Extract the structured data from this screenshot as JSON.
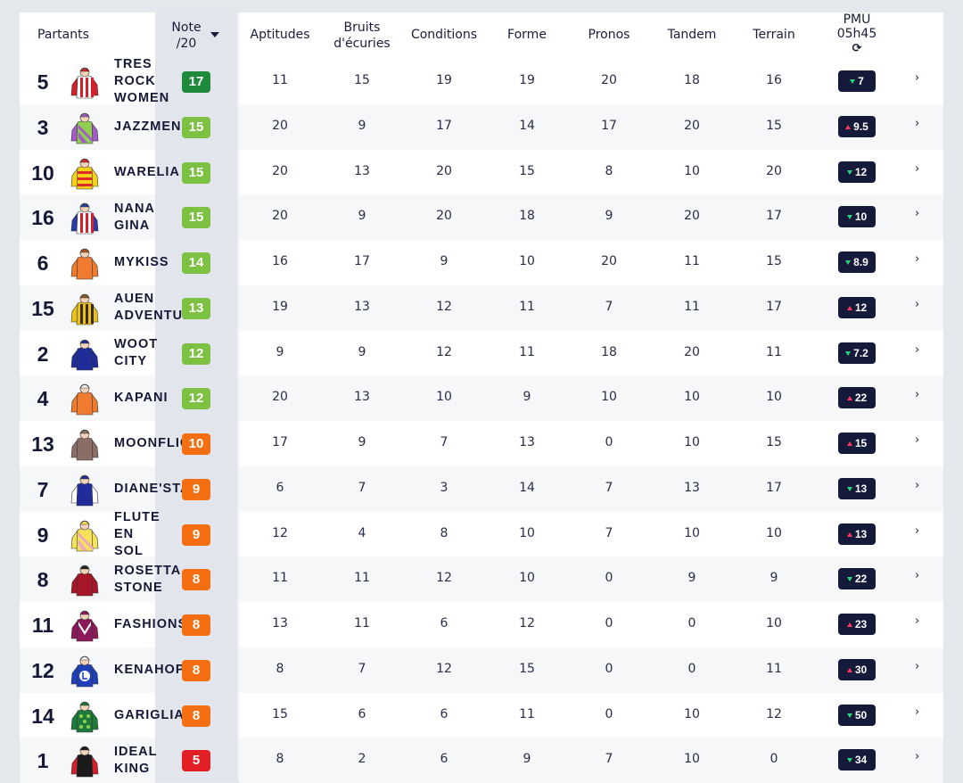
{
  "header": {
    "partants": "Partants",
    "note": "Note\n/20",
    "aptitudes": "Aptitudes",
    "bruits": "Bruits\nd'écuries",
    "conditions": "Conditions",
    "forme": "Forme",
    "pronos": "Pronos",
    "tandem": "Tandem",
    "terrain": "Terrain",
    "pmu": "PMU\n05h45",
    "refresh_icon": "refresh-icon"
  },
  "colors": {
    "note_dark_green": "#1f8a3c",
    "note_green": "#7cc142",
    "note_orange": "#f56f12",
    "note_red": "#e31f26",
    "pmu_bg": "#151a3b",
    "pmu_up": "#ff3860",
    "pmu_down": "#2fd37a"
  },
  "rows": [
    {
      "num": "5",
      "name": "TRES\nROCK\nWOMEN",
      "note": "17",
      "note_color": "#1f8a3c",
      "aptitudes": "11",
      "bruits": "15",
      "conditions": "19",
      "forme": "19",
      "pronos": "20",
      "tandem": "18",
      "terrain": "16",
      "pmu": "7",
      "trend": "down",
      "silk": {
        "body": "#ffffff",
        "stripe": "#d4202a",
        "sleeve": "#d4202a",
        "cap": "#d4202a",
        "pattern": "stripes"
      }
    },
    {
      "num": "3",
      "name": "JAZZMEN",
      "note": "15",
      "note_color": "#7cc142",
      "aptitudes": "20",
      "bruits": "9",
      "conditions": "17",
      "forme": "14",
      "pronos": "17",
      "tandem": "20",
      "terrain": "15",
      "pmu": "9.5",
      "trend": "up",
      "silk": {
        "body": "#8fd14f",
        "stripe": "#a55bc7",
        "sleeve": "#a55bc7",
        "cap": "#a55bc7",
        "pattern": "diagonal"
      }
    },
    {
      "num": "10",
      "name": "WARELIA",
      "note": "15",
      "note_color": "#7cc142",
      "aptitudes": "20",
      "bruits": "13",
      "conditions": "20",
      "forme": "15",
      "pronos": "8",
      "tandem": "10",
      "terrain": "20",
      "pmu": "12",
      "trend": "down",
      "silk": {
        "body": "#f5d215",
        "stripe": "#e02a2a",
        "sleeve": "#f5d215",
        "cap": "#e02a2a",
        "pattern": "hoops"
      }
    },
    {
      "num": "16",
      "name": "NANA\nGINA",
      "note": "15",
      "note_color": "#7cc142",
      "aptitudes": "20",
      "bruits": "9",
      "conditions": "20",
      "forme": "18",
      "pronos": "9",
      "tandem": "20",
      "terrain": "17",
      "pmu": "10",
      "trend": "down",
      "silk": {
        "body": "#ffffff",
        "stripe": "#d4202a",
        "sleeve": "#2b3aa8",
        "cap": "#2b3aa8",
        "pattern": "stripes"
      }
    },
    {
      "num": "6",
      "name": "MYKISS",
      "note": "14",
      "note_color": "#7cc142",
      "aptitudes": "16",
      "bruits": "17",
      "conditions": "9",
      "forme": "10",
      "pronos": "20",
      "tandem": "11",
      "terrain": "15",
      "pmu": "8.9",
      "trend": "down",
      "silk": {
        "body": "#f07a2e",
        "stripe": "#c0541a",
        "sleeve": "#f07a2e",
        "cap": "#c0541a",
        "pattern": "plain"
      }
    },
    {
      "num": "15",
      "name": "AUEN\nADVENTURE",
      "note": "13",
      "note_color": "#7cc142",
      "aptitudes": "19",
      "bruits": "13",
      "conditions": "12",
      "forme": "11",
      "pronos": "7",
      "tandem": "11",
      "terrain": "17",
      "pmu": "12",
      "trend": "up",
      "silk": {
        "body": "#e8c21a",
        "stripe": "#3a2a10",
        "sleeve": "#e8c21a",
        "cap": "#8a5a20",
        "pattern": "stripes"
      }
    },
    {
      "num": "2",
      "name": "WOOT\nCITY",
      "note": "12",
      "note_color": "#7cc142",
      "aptitudes": "9",
      "bruits": "9",
      "conditions": "12",
      "forme": "11",
      "pronos": "18",
      "tandem": "20",
      "terrain": "11",
      "pmu": "7.2",
      "trend": "down",
      "silk": {
        "body": "#1f2c9a",
        "stripe": "#ffffff",
        "sleeve": "#1f2c9a",
        "cap": "#1f2c9a",
        "pattern": "plain"
      }
    },
    {
      "num": "4",
      "name": "KAPANI",
      "note": "12",
      "note_color": "#7cc142",
      "aptitudes": "20",
      "bruits": "13",
      "conditions": "10",
      "forme": "9",
      "pronos": "10",
      "tandem": "10",
      "terrain": "10",
      "pmu": "22",
      "trend": "up",
      "silk": {
        "body": "#f07a2e",
        "stripe": "#ffffff",
        "sleeve": "#f07a2e",
        "cap": "#ffffff",
        "pattern": "plain"
      }
    },
    {
      "num": "13",
      "name": "MOONFLIGHT",
      "note": "10",
      "note_color": "#f56f12",
      "aptitudes": "17",
      "bruits": "9",
      "conditions": "7",
      "forme": "13",
      "pronos": "0",
      "tandem": "10",
      "terrain": "15",
      "pmu": "15",
      "trend": "up",
      "silk": {
        "body": "#8a6e66",
        "stripe": "#f07a2e",
        "sleeve": "#8a6e66",
        "cap": "#8a6e66",
        "pattern": "plain"
      }
    },
    {
      "num": "7",
      "name": "DIANE'STAR",
      "note": "9",
      "note_color": "#f56f12",
      "aptitudes": "6",
      "bruits": "7",
      "conditions": "3",
      "forme": "14",
      "pronos": "7",
      "tandem": "13",
      "terrain": "17",
      "pmu": "13",
      "trend": "down",
      "silk": {
        "body": "#1f2c9a",
        "stripe": "#ffffff",
        "sleeve": "#ffffff",
        "cap": "#1f2c9a",
        "pattern": "plain"
      }
    },
    {
      "num": "9",
      "name": "FLUTE\nEN\nSOL",
      "note": "9",
      "note_color": "#f56f12",
      "aptitudes": "12",
      "bruits": "4",
      "conditions": "8",
      "forme": "10",
      "pronos": "7",
      "tandem": "10",
      "terrain": "10",
      "pmu": "13",
      "trend": "up",
      "silk": {
        "body": "#f5e15a",
        "stripe": "#f0a8c0",
        "sleeve": "#f5e15a",
        "cap": "#f5e15a",
        "pattern": "diagonal"
      }
    },
    {
      "num": "8",
      "name": "ROSETTA\nSTONE",
      "note": "8",
      "note_color": "#f56f12",
      "aptitudes": "11",
      "bruits": "11",
      "conditions": "12",
      "forme": "10",
      "pronos": "0",
      "tandem": "9",
      "terrain": "9",
      "pmu": "22",
      "trend": "down",
      "silk": {
        "body": "#a8162a",
        "stripe": "#222222",
        "sleeve": "#a8162a",
        "cap": "#222222",
        "pattern": "plain"
      }
    },
    {
      "num": "11",
      "name": "FASHIONS",
      "note": "8",
      "note_color": "#f56f12",
      "aptitudes": "13",
      "bruits": "11",
      "conditions": "6",
      "forme": "12",
      "pronos": "0",
      "tandem": "0",
      "terrain": "10",
      "pmu": "23",
      "trend": "up",
      "silk": {
        "body": "#8c1a5a",
        "stripe": "#ffffff",
        "sleeve": "#8c1a5a",
        "cap": "#8c1a5a",
        "pattern": "chevron"
      }
    },
    {
      "num": "12",
      "name": "KENAHOPE",
      "note": "8",
      "note_color": "#f56f12",
      "aptitudes": "8",
      "bruits": "7",
      "conditions": "12",
      "forme": "15",
      "pronos": "0",
      "tandem": "0",
      "terrain": "11",
      "pmu": "30",
      "trend": "up",
      "silk": {
        "body": "#1f3fb8",
        "stripe": "#ffffff",
        "sleeve": "#1f3fb8",
        "cap": "#ffffff",
        "pattern": "letter"
      }
    },
    {
      "num": "14",
      "name": "GARIGLIANO",
      "note": "8",
      "note_color": "#f56f12",
      "aptitudes": "15",
      "bruits": "6",
      "conditions": "6",
      "forme": "11",
      "pronos": "0",
      "tandem": "10",
      "terrain": "12",
      "pmu": "50",
      "trend": "down",
      "silk": {
        "body": "#1e7a3a",
        "stripe": "#8fd14f",
        "sleeve": "#1e7a3a",
        "cap": "#1e7a3a",
        "pattern": "dots"
      }
    },
    {
      "num": "1",
      "name": "IDEAL\nKING",
      "note": "5",
      "note_color": "#e31f26",
      "aptitudes": "8",
      "bruits": "2",
      "conditions": "6",
      "forme": "9",
      "pronos": "7",
      "tandem": "10",
      "terrain": "0",
      "pmu": "34",
      "trend": "down",
      "silk": {
        "body": "#1a1a1a",
        "stripe": "#d4202a",
        "sleeve": "#d4202a",
        "cap": "#1a1a1a",
        "pattern": "plain"
      }
    }
  ]
}
